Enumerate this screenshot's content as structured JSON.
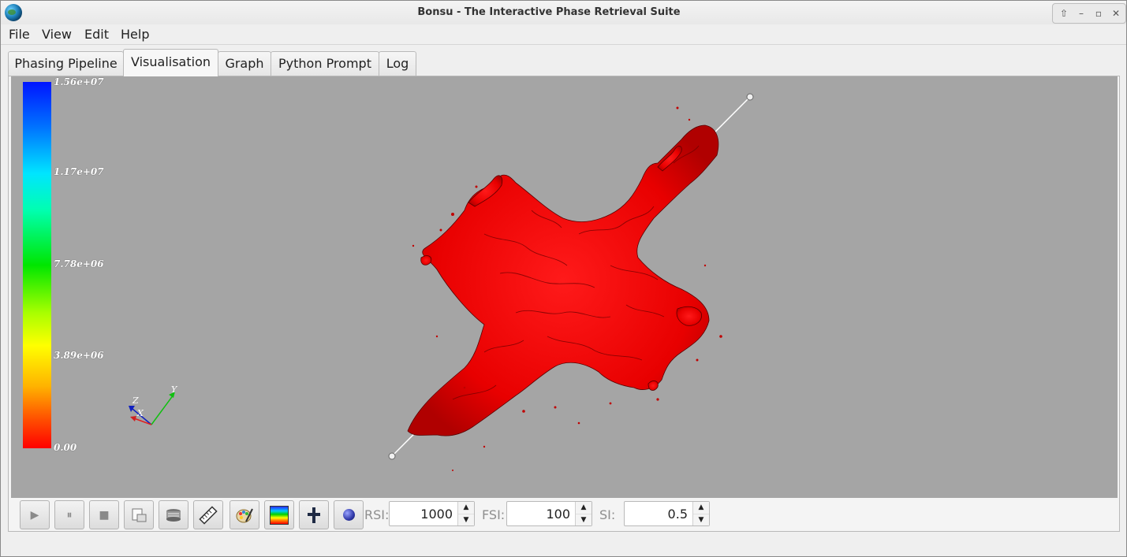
{
  "window": {
    "title": "Bonsu - The Interactive Phase Retrieval Suite"
  },
  "menu": [
    "File",
    "View",
    "Edit",
    "Help"
  ],
  "tabs": [
    "Phasing Pipeline",
    "Visualisation",
    "Graph",
    "Python Prompt",
    "Log"
  ],
  "active_tab": "Visualisation",
  "colorbar": {
    "ticks": [
      "1.56e+07",
      "1.17e+07",
      "7.78e+06",
      "3.89e+06",
      "0.00"
    ]
  },
  "axes": {
    "x": "X",
    "y": "Y",
    "z": "Z"
  },
  "toolbar": {
    "buttons": [
      "play-icon",
      "pause-icon",
      "stop-icon",
      "save-image-icon",
      "data-file-icon",
      "measure-ruler-icon",
      "palette-icon",
      "colormap-icon",
      "slice-plane-icon",
      "sphere-icon"
    ],
    "fields": [
      {
        "label": "RSI:",
        "value": "1000"
      },
      {
        "label": "FSI:",
        "value": "100"
      },
      {
        "label": "SI:",
        "value": "0.5"
      }
    ]
  }
}
